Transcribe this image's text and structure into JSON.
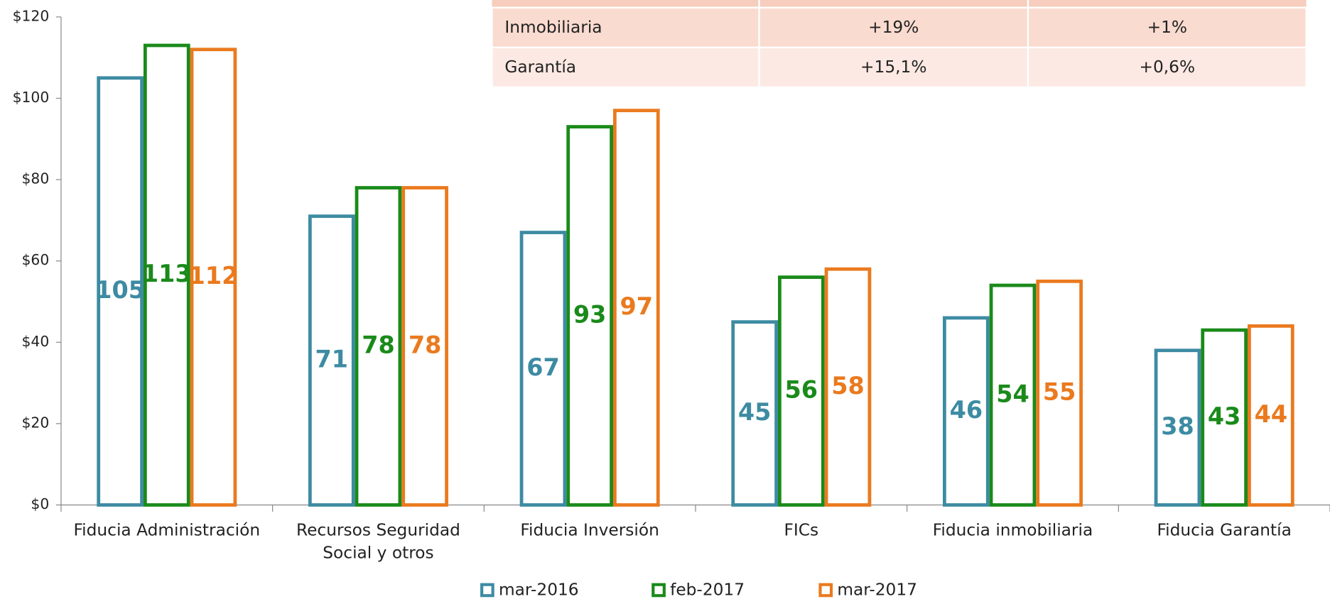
{
  "chart_data": {
    "type": "bar",
    "categories": [
      "Fiducia Administración",
      "Recursos Seguridad Social y otros",
      "Fiducia Inversión",
      "FICs",
      "Fiducia inmobiliaria",
      "Fiducia Garantía"
    ],
    "series": [
      {
        "name": "mar-2016",
        "color": "#3d8ba3",
        "values": [
          105,
          71,
          67,
          45,
          46,
          38
        ]
      },
      {
        "name": "feb-2017",
        "color": "#1a8a1a",
        "values": [
          113,
          78,
          93,
          56,
          54,
          43
        ]
      },
      {
        "name": "mar-2017",
        "color": "#ea7a1e",
        "values": [
          112,
          78,
          97,
          58,
          55,
          44
        ]
      }
    ],
    "ylim": [
      0,
      120
    ],
    "yticks": [
      {
        "value": 0,
        "label": "$0"
      },
      {
        "value": 20,
        "label": "$20"
      },
      {
        "value": 40,
        "label": "$40"
      },
      {
        "value": 60,
        "label": "$60"
      },
      {
        "value": 80,
        "label": "$80"
      },
      {
        "value": 100,
        "label": "$100"
      },
      {
        "value": 120,
        "label": "$120"
      }
    ],
    "legend": "bottom"
  },
  "table": {
    "rows": [
      [
        "Inmobiliaria",
        "+19%",
        "+1%"
      ],
      [
        "Garantía",
        "+15,1%",
        "+0,6%"
      ]
    ]
  }
}
